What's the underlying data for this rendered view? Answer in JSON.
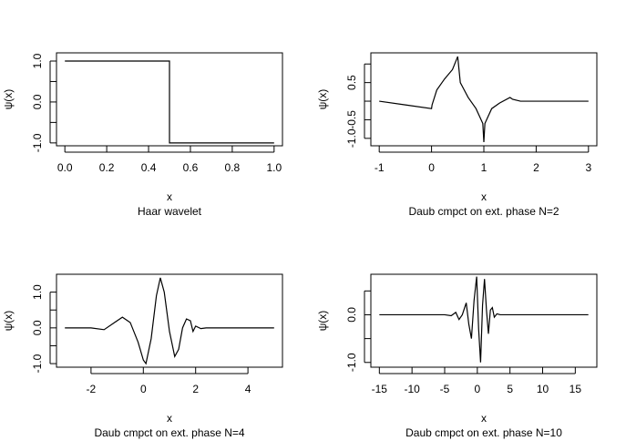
{
  "chart_data": [
    {
      "type": "line",
      "subtitle": "Haar wavelet",
      "xlabel": "x",
      "ylabel": "ψ(x)",
      "color": "#000000",
      "x": [
        0,
        0.5,
        0.5,
        1
      ],
      "values": [
        1,
        1,
        -1,
        -1
      ],
      "xlim": [
        -0.04,
        1.04
      ],
      "ylim": [
        -1.07,
        1.2
      ],
      "xticks": [
        {
          "value": 0,
          "label": "0.0"
        },
        0.2,
        0.4,
        0.6,
        0.8,
        {
          "value": 1,
          "label": "1.0"
        }
      ],
      "yticks": [
        {
          "value": -1,
          "label": "-1.0"
        },
        {
          "value": -0.5,
          "label": null
        },
        {
          "value": 0,
          "label": "0.0"
        },
        {
          "value": 0.5,
          "label": null
        },
        {
          "value": 1,
          "label": "1.0"
        }
      ]
    },
    {
      "type": "line",
      "subtitle": "Daub cmpct on ext. phase N=2",
      "xlabel": "x",
      "ylabel": "ψ(x)",
      "color": "#000000",
      "x": [
        -1,
        -0.5,
        0,
        0.01,
        0.1,
        0.25,
        0.4,
        0.5,
        0.55,
        0.7,
        0.85,
        0.98,
        1.0,
        1.02,
        1.15,
        1.3,
        1.5,
        1.55,
        1.7,
        2,
        3
      ],
      "values": [
        0.0,
        -0.1,
        -0.2,
        -0.1,
        0.3,
        0.6,
        0.85,
        1.2,
        0.5,
        0.1,
        -0.2,
        -0.6,
        -1.1,
        -0.6,
        -0.2,
        -0.05,
        0.1,
        0.05,
        0,
        0,
        0
      ],
      "xlim": [
        -1.16,
        3.16
      ],
      "ylim": [
        -1.2,
        1.3
      ],
      "xticks": [
        -1,
        0,
        1,
        2,
        3
      ],
      "yticks": [
        {
          "value": -1,
          "label": "-1.0"
        },
        -0.5,
        {
          "value": 0,
          "label": null
        },
        0.5,
        {
          "value": 1,
          "label": null
        }
      ]
    },
    {
      "type": "line",
      "subtitle": "Daub cmpct on ext. phase N=4",
      "xlabel": "x",
      "ylabel": "ψ(x)",
      "color": "#000000",
      "x": [
        -3,
        -2,
        -1.5,
        -1,
        -0.8,
        -0.5,
        -0.2,
        0,
        0.1,
        0.3,
        0.5,
        0.65,
        0.8,
        1.0,
        1.2,
        1.35,
        1.5,
        1.65,
        1.8,
        1.9,
        2.0,
        2.2,
        2.4,
        5
      ],
      "values": [
        0,
        0,
        -0.05,
        0.2,
        0.3,
        0.15,
        -0.4,
        -0.9,
        -1.0,
        -0.3,
        0.9,
        1.4,
        1.0,
        -0.1,
        -0.8,
        -0.6,
        0,
        0.25,
        0.2,
        -0.1,
        0.05,
        -0.02,
        0,
        0
      ],
      "xlim": [
        -3.32,
        5.32
      ],
      "ylim": [
        -1.1,
        1.5
      ],
      "xticks": [
        -2,
        0,
        2,
        4
      ],
      "yticks": [
        {
          "value": -1,
          "label": "-1.0"
        },
        {
          "value": -0.5,
          "label": null
        },
        {
          "value": 0,
          "label": "0.0"
        },
        {
          "value": 0.5,
          "label": null
        },
        {
          "value": 1,
          "label": "1.0"
        }
      ]
    },
    {
      "type": "line",
      "subtitle": "Daub cmpct on ext. phase N=10",
      "xlabel": "x",
      "ylabel": "ψ(x)",
      "color": "#000000",
      "x": [
        -15,
        -5,
        -4,
        -3.3,
        -2.8,
        -2.3,
        -1.7,
        -1.3,
        -0.9,
        -0.5,
        -0.1,
        0.2,
        0.5,
        0.8,
        1.1,
        1.4,
        1.7,
        2.0,
        2.3,
        2.6,
        3,
        3.5,
        17
      ],
      "values": [
        0,
        0,
        -0.02,
        0.05,
        -0.1,
        0.0,
        0.25,
        -0.2,
        -0.5,
        0.3,
        0.8,
        -0.3,
        -1.0,
        0.2,
        0.75,
        0.1,
        -0.4,
        0.1,
        0.15,
        -0.05,
        0.02,
        0,
        0
      ],
      "xlim": [
        -16.3,
        18.3
      ],
      "ylim": [
        -1.1,
        0.85
      ],
      "xticks": [
        -15,
        -10,
        -5,
        0,
        5,
        10,
        15
      ],
      "yticks": [
        {
          "value": -1,
          "label": "-1.0"
        },
        {
          "value": -0.5,
          "label": null
        },
        {
          "value": 0,
          "label": "0.0"
        },
        {
          "value": 0.5,
          "label": null
        }
      ]
    }
  ]
}
